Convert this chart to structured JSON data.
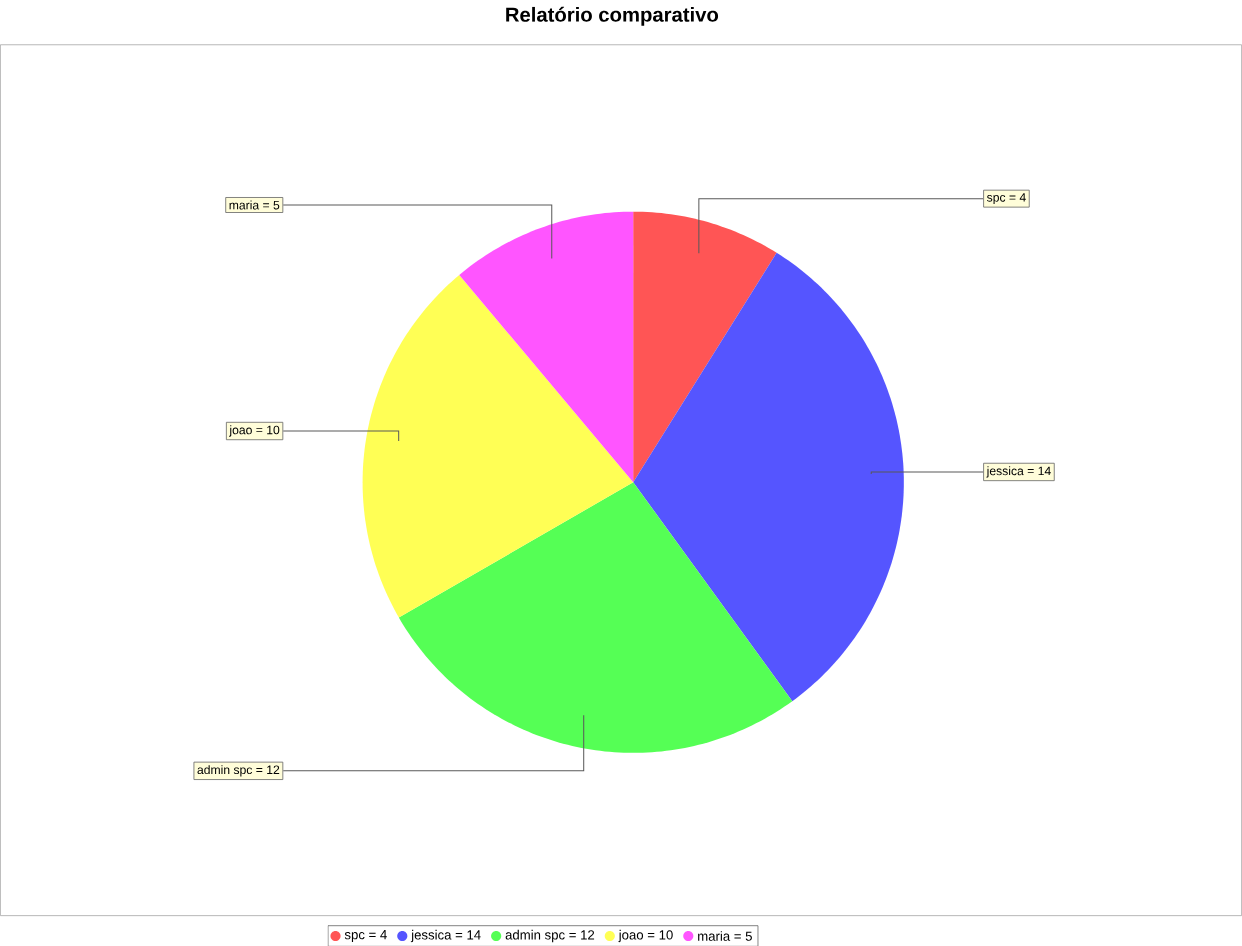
{
  "chart_data": {
    "type": "pie",
    "title": "Relatório  comparativo",
    "categories": [
      "spc = 4",
      "jessica = 14",
      "admin spc = 12",
      "joao = 10",
      "maria = 5"
    ],
    "values": [
      4,
      14,
      12,
      10,
      5
    ],
    "colors": [
      "#ff5555",
      "#5555ff",
      "#55ff55",
      "#ffff55",
      "#ff55ff"
    ],
    "legend": "bottom"
  }
}
